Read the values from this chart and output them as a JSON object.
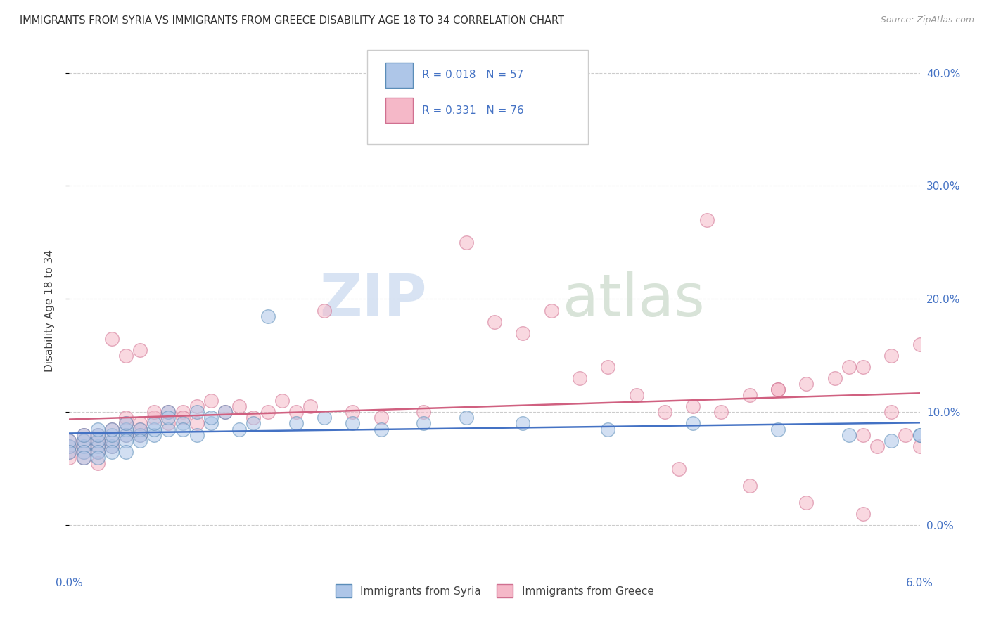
{
  "title": "IMMIGRANTS FROM SYRIA VS IMMIGRANTS FROM GREECE DISABILITY AGE 18 TO 34 CORRELATION CHART",
  "source": "Source: ZipAtlas.com",
  "xmin": 0.0,
  "xmax": 0.06,
  "ymin": -0.04,
  "ymax": 0.42,
  "ytick_positions": [
    0.0,
    0.1,
    0.2,
    0.3,
    0.4
  ],
  "ytick_labels": [
    "0.0%",
    "10.0%",
    "20.0%",
    "30.0%",
    "40.0%"
  ],
  "xtick_positions": [
    0.0,
    0.01,
    0.02,
    0.03,
    0.04,
    0.05,
    0.06
  ],
  "xtick_labels_show": [
    "0.0%",
    "",
    "",
    "",
    "",
    "",
    "6.0%"
  ],
  "legend_labels": [
    "Immigrants from Syria",
    "Immigrants from Greece"
  ],
  "legend_r_syria": "R = 0.018",
  "legend_n_syria": "N = 57",
  "legend_r_greece": "R = 0.331",
  "legend_n_greece": "N = 76",
  "color_syria_fill": "#aec6e8",
  "color_syria_edge": "#5b8db8",
  "color_syria_line": "#4472c4",
  "color_greece_fill": "#f5b8c8",
  "color_greece_edge": "#d07090",
  "color_greece_line": "#d06080",
  "watermark_zip": "ZIP",
  "watermark_atlas": "atlas",
  "watermark_color_zip": "#c8d8ee",
  "watermark_color_atlas": "#c8d8c8",
  "background": "#ffffff",
  "grid_color": "#cccccc",
  "title_color": "#303030",
  "axis_tick_color": "#4472c4",
  "ylabel": "Disability Age 18 to 34",
  "syria_x": [
    0.0,
    0.0,
    0.0,
    0.001,
    0.001,
    0.001,
    0.001,
    0.001,
    0.002,
    0.002,
    0.002,
    0.002,
    0.002,
    0.002,
    0.003,
    0.003,
    0.003,
    0.003,
    0.003,
    0.004,
    0.004,
    0.004,
    0.004,
    0.004,
    0.005,
    0.005,
    0.005,
    0.006,
    0.006,
    0.006,
    0.007,
    0.007,
    0.007,
    0.008,
    0.008,
    0.009,
    0.009,
    0.01,
    0.01,
    0.011,
    0.012,
    0.013,
    0.014,
    0.016,
    0.018,
    0.02,
    0.022,
    0.025,
    0.028,
    0.032,
    0.038,
    0.044,
    0.05,
    0.055,
    0.058,
    0.06,
    0.06
  ],
  "syria_y": [
    0.07,
    0.075,
    0.065,
    0.07,
    0.075,
    0.065,
    0.08,
    0.06,
    0.07,
    0.075,
    0.065,
    0.08,
    0.085,
    0.06,
    0.07,
    0.075,
    0.065,
    0.08,
    0.085,
    0.08,
    0.085,
    0.075,
    0.065,
    0.09,
    0.08,
    0.085,
    0.075,
    0.08,
    0.085,
    0.09,
    0.085,
    0.1,
    0.095,
    0.09,
    0.085,
    0.1,
    0.08,
    0.09,
    0.095,
    0.1,
    0.085,
    0.09,
    0.185,
    0.09,
    0.095,
    0.09,
    0.085,
    0.09,
    0.095,
    0.09,
    0.085,
    0.09,
    0.085,
    0.08,
    0.075,
    0.08,
    0.08
  ],
  "greece_x": [
    0.0,
    0.0,
    0.0,
    0.0,
    0.001,
    0.001,
    0.001,
    0.001,
    0.001,
    0.002,
    0.002,
    0.002,
    0.002,
    0.002,
    0.003,
    0.003,
    0.003,
    0.003,
    0.004,
    0.004,
    0.004,
    0.004,
    0.005,
    0.005,
    0.005,
    0.005,
    0.006,
    0.006,
    0.007,
    0.007,
    0.008,
    0.008,
    0.009,
    0.009,
    0.01,
    0.011,
    0.012,
    0.013,
    0.014,
    0.015,
    0.016,
    0.017,
    0.018,
    0.02,
    0.022,
    0.025,
    0.028,
    0.03,
    0.032,
    0.034,
    0.036,
    0.038,
    0.04,
    0.042,
    0.044,
    0.046,
    0.048,
    0.05,
    0.052,
    0.054,
    0.056,
    0.058,
    0.06,
    0.045,
    0.05,
    0.055,
    0.058,
    0.056,
    0.06,
    0.059,
    0.057,
    0.061,
    0.043,
    0.048,
    0.052,
    0.056
  ],
  "greece_y": [
    0.07,
    0.065,
    0.075,
    0.06,
    0.07,
    0.065,
    0.075,
    0.08,
    0.06,
    0.07,
    0.065,
    0.075,
    0.08,
    0.055,
    0.085,
    0.07,
    0.075,
    0.165,
    0.09,
    0.095,
    0.08,
    0.15,
    0.08,
    0.085,
    0.09,
    0.155,
    0.095,
    0.1,
    0.1,
    0.09,
    0.1,
    0.095,
    0.105,
    0.09,
    0.11,
    0.1,
    0.105,
    0.095,
    0.1,
    0.11,
    0.1,
    0.105,
    0.19,
    0.1,
    0.095,
    0.1,
    0.25,
    0.18,
    0.17,
    0.19,
    0.13,
    0.14,
    0.115,
    0.1,
    0.105,
    0.1,
    0.115,
    0.12,
    0.125,
    0.13,
    0.14,
    0.15,
    0.16,
    0.27,
    0.12,
    0.14,
    0.1,
    0.08,
    0.07,
    0.08,
    0.07,
    0.065,
    0.05,
    0.035,
    0.02,
    0.01
  ]
}
